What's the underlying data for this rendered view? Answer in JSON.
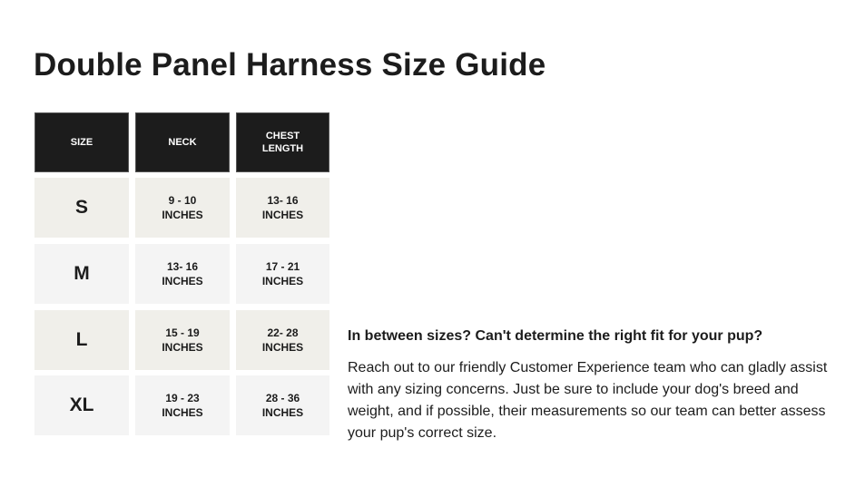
{
  "title": "Double Panel Harness Size Guide",
  "table": {
    "headers": [
      "SIZE",
      "NECK",
      "CHEST\nLENGTH"
    ],
    "rows": [
      {
        "size": "S",
        "neck": "9 - 10",
        "chest": "13- 16",
        "unit": "INCHES"
      },
      {
        "size": "M",
        "neck": "13- 16",
        "chest": "17 - 21",
        "unit": "INCHES"
      },
      {
        "size": "L",
        "neck": "15 - 19",
        "chest": "22- 28",
        "unit": "INCHES"
      },
      {
        "size": "XL",
        "neck": "19 - 23",
        "chest": "28 - 36",
        "unit": "INCHES"
      }
    ]
  },
  "help": {
    "heading": "In between sizes? Can't determine the right fit for your pup?",
    "body": "Reach out to our friendly Customer Experience team who can gladly assist with any sizing concerns. Just be sure to include your dog's breed and weight, and if possible, their measurements so our team can better assess your pup's correct size."
  },
  "colors": {
    "header_bg": "#1c1c1c",
    "row_odd": "#f0efea",
    "row_even": "#f4f4f4"
  }
}
